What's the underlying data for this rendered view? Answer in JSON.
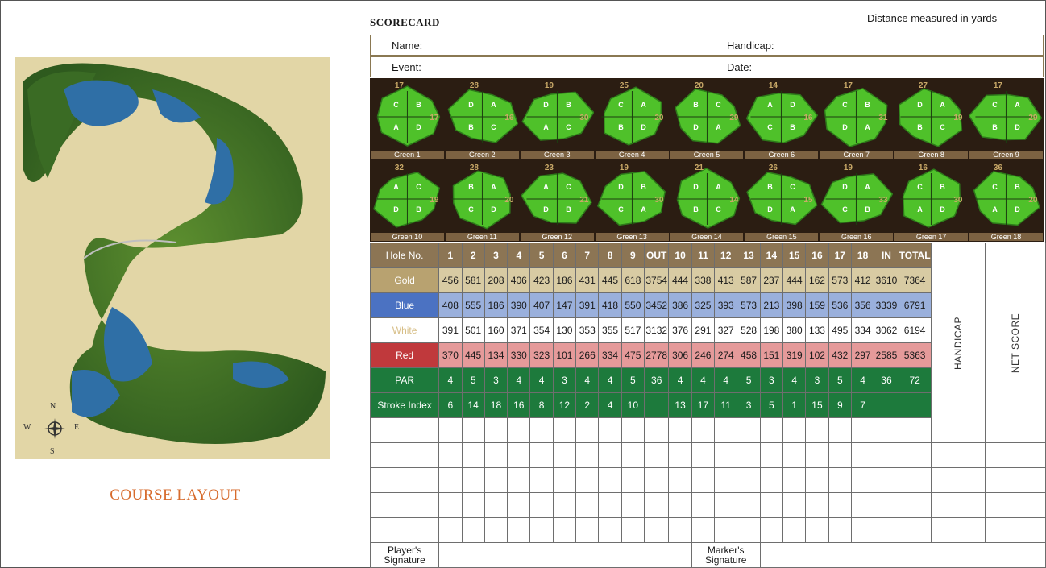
{
  "course": {
    "title": "COURSE LAYOUT",
    "compass": {
      "n": "N",
      "s": "S",
      "e": "E",
      "w": "W"
    }
  },
  "scorecard": {
    "title": "SCORECARD",
    "distance_note": "Distance measured in yards",
    "fields": {
      "name": "Name:",
      "handicap": "Handicap:",
      "event": "Event:",
      "date": "Date:"
    }
  },
  "greens": [
    {
      "label": "Green 1",
      "pins": [
        "C",
        "B",
        "A",
        "D"
      ],
      "nums": [
        "17",
        "17"
      ]
    },
    {
      "label": "Green 2",
      "pins": [
        "D",
        "A",
        "B",
        "C"
      ],
      "nums": [
        "28",
        "16"
      ]
    },
    {
      "label": "Green 3",
      "pins": [
        "D",
        "B",
        "A",
        "C"
      ],
      "nums": [
        "19",
        "30"
      ]
    },
    {
      "label": "Green 4",
      "pins": [
        "C",
        "A",
        "B",
        "D"
      ],
      "nums": [
        "25",
        "20"
      ]
    },
    {
      "label": "Green 5",
      "pins": [
        "B",
        "C",
        "D",
        "A"
      ],
      "nums": [
        "20",
        "29"
      ]
    },
    {
      "label": "Green 6",
      "pins": [
        "A",
        "D",
        "C",
        "B"
      ],
      "nums": [
        "14",
        "16"
      ]
    },
    {
      "label": "Green 7",
      "pins": [
        "C",
        "B",
        "D",
        "A"
      ],
      "nums": [
        "17",
        "31"
      ]
    },
    {
      "label": "Green 8",
      "pins": [
        "D",
        "A",
        "B",
        "C"
      ],
      "nums": [
        "27",
        "19"
      ]
    },
    {
      "label": "Green 9",
      "pins": [
        "C",
        "A",
        "B",
        "D"
      ],
      "nums": [
        "17",
        "29"
      ]
    },
    {
      "label": "Green 10",
      "pins": [
        "A",
        "C",
        "D",
        "B"
      ],
      "nums": [
        "32",
        "19"
      ]
    },
    {
      "label": "Green 11",
      "pins": [
        "B",
        "A",
        "C",
        "D"
      ],
      "nums": [
        "28",
        "20"
      ]
    },
    {
      "label": "Green 12",
      "pins": [
        "A",
        "C",
        "D",
        "B"
      ],
      "nums": [
        "23",
        "21"
      ]
    },
    {
      "label": "Green 13",
      "pins": [
        "D",
        "B",
        "C",
        "A"
      ],
      "nums": [
        "19",
        "30"
      ]
    },
    {
      "label": "Green 14",
      "pins": [
        "D",
        "A",
        "B",
        "C"
      ],
      "nums": [
        "21",
        "14"
      ]
    },
    {
      "label": "Green 15",
      "pins": [
        "B",
        "C",
        "D",
        "A"
      ],
      "nums": [
        "26",
        "15"
      ]
    },
    {
      "label": "Green 16",
      "pins": [
        "D",
        "A",
        "C",
        "B"
      ],
      "nums": [
        "19",
        "33"
      ]
    },
    {
      "label": "Green 17",
      "pins": [
        "C",
        "B",
        "A",
        "D"
      ],
      "nums": [
        "16",
        "30"
      ]
    },
    {
      "label": "Green 18",
      "pins": [
        "C",
        "B",
        "A",
        "D"
      ],
      "nums": [
        "36",
        "20"
      ]
    }
  ],
  "table": {
    "hole_label": "Hole No.",
    "holes": [
      "1",
      "2",
      "3",
      "4",
      "5",
      "6",
      "7",
      "8",
      "9",
      "OUT",
      "10",
      "11",
      "12",
      "13",
      "14",
      "15",
      "16",
      "17",
      "18",
      "IN",
      "TOTAL"
    ],
    "handicap_label": "HANDICAP",
    "net_score_label": "NET SCORE",
    "rows": [
      {
        "key": "gold",
        "label": "Gold",
        "values": [
          "456",
          "581",
          "208",
          "406",
          "423",
          "186",
          "431",
          "445",
          "618",
          "3754",
          "444",
          "338",
          "413",
          "587",
          "237",
          "444",
          "162",
          "573",
          "412",
          "3610",
          "7364"
        ]
      },
      {
        "key": "blue",
        "label": "Blue",
        "values": [
          "408",
          "555",
          "186",
          "390",
          "407",
          "147",
          "391",
          "418",
          "550",
          "3452",
          "386",
          "325",
          "393",
          "573",
          "213",
          "398",
          "159",
          "536",
          "356",
          "3339",
          "6791"
        ]
      },
      {
        "key": "white",
        "label": "White",
        "values": [
          "391",
          "501",
          "160",
          "371",
          "354",
          "130",
          "353",
          "355",
          "517",
          "3132",
          "376",
          "291",
          "327",
          "528",
          "198",
          "380",
          "133",
          "495",
          "334",
          "3062",
          "6194"
        ]
      },
      {
        "key": "red",
        "label": "Red",
        "values": [
          "370",
          "445",
          "134",
          "330",
          "323",
          "101",
          "266",
          "334",
          "475",
          "2778",
          "306",
          "246",
          "274",
          "458",
          "151",
          "319",
          "102",
          "432",
          "297",
          "2585",
          "5363"
        ]
      },
      {
        "key": "par",
        "label": "PAR",
        "values": [
          "4",
          "5",
          "3",
          "4",
          "4",
          "3",
          "4",
          "4",
          "5",
          "36",
          "4",
          "4",
          "4",
          "5",
          "3",
          "4",
          "3",
          "5",
          "4",
          "36",
          "72"
        ]
      },
      {
        "key": "si",
        "label": "Stroke Index",
        "values": [
          "6",
          "14",
          "18",
          "16",
          "8",
          "12",
          "2",
          "4",
          "10",
          "",
          "13",
          "17",
          "11",
          "3",
          "5",
          "1",
          "15",
          "9",
          "7",
          "",
          ""
        ]
      }
    ],
    "players_signature": "Player's Signature",
    "markers_signature": "Marker's Signature"
  },
  "colors": {
    "gold": "#d8cba3",
    "blue": "#4b72c2",
    "red": "#c0393c",
    "par": "#1d7a3c",
    "hole": "#8c7554",
    "accent": "#d76b2c"
  }
}
